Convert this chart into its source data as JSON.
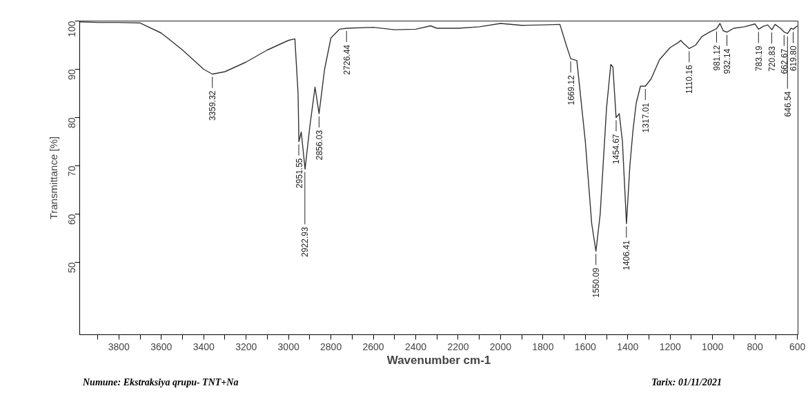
{
  "chart_data": {
    "type": "line",
    "xlabel": "Wavenumber cm-1",
    "ylabel": "Transmittance [%]",
    "xlim": [
      3985,
      597
    ],
    "ylim": [
      35,
      100
    ],
    "xticks": [
      {
        "value": 3900,
        "label": null
      },
      3800,
      {
        "value": 3700,
        "label": null
      },
      3600,
      {
        "value": 3500,
        "label": null
      },
      3400,
      {
        "value": 3300,
        "label": null
      },
      3200,
      {
        "value": 3100,
        "label": null
      },
      3000,
      {
        "value": 2900,
        "label": null
      },
      2800,
      {
        "value": 2700,
        "label": null
      },
      2600,
      {
        "value": 2500,
        "label": null
      },
      2400,
      {
        "value": 2300,
        "label": null
      },
      2200,
      {
        "value": 2100,
        "label": null
      },
      2000,
      {
        "value": 1900,
        "label": null
      },
      1800,
      {
        "value": 1700,
        "label": null
      },
      1600,
      {
        "value": 1500,
        "label": null
      },
      1400,
      {
        "value": 1300,
        "label": null
      },
      1200,
      {
        "value": 1100,
        "label": null
      },
      1000,
      {
        "value": 900,
        "label": null
      },
      800,
      {
        "value": 700,
        "label": null
      },
      600
    ],
    "yticks": [
      50,
      60,
      70,
      80,
      90,
      100
    ],
    "grid": false,
    "marker": "none",
    "line_style": "solid",
    "series": [
      {
        "color": "#333333",
        "x": [
          3985,
          3900,
          3800,
          3700,
          3600,
          3500,
          3400,
          3359,
          3300,
          3200,
          3100,
          3000,
          2970,
          2955,
          2951,
          2940,
          2922,
          2900,
          2875,
          2856,
          2830,
          2800,
          2760,
          2726,
          2600,
          2500,
          2400,
          2330,
          2300,
          2200,
          2100,
          2000,
          1900,
          1800,
          1720,
          1690,
          1669,
          1640,
          1600,
          1570,
          1550,
          1530,
          1500,
          1480,
          1470,
          1455,
          1440,
          1425,
          1406,
          1390,
          1375,
          1360,
          1340,
          1317,
          1290,
          1250,
          1200,
          1160,
          1150,
          1140,
          1110,
          1080,
          1050,
          1010,
          981,
          965,
          950,
          932,
          900,
          850,
          800,
          783,
          760,
          740,
          720,
          705,
          680,
          662,
          646,
          630,
          619,
          600
        ],
        "values": [
          99.8,
          99.7,
          99.7,
          99.6,
          97.5,
          94,
          90,
          89,
          89.5,
          91.5,
          94,
          96,
          96.3,
          85,
          75,
          77,
          69.3,
          78,
          86.3,
          80.8,
          90,
          96.5,
          98.3,
          98.5,
          98.7,
          98.2,
          98.3,
          99,
          98.5,
          98.5,
          98.8,
          99.5,
          99.1,
          99.2,
          99.3,
          95,
          92.2,
          91.8,
          75,
          58,
          52.3,
          60,
          82,
          91,
          90.5,
          80,
          80.8,
          75,
          58,
          70,
          77.5,
          83,
          86.5,
          86.5,
          88,
          92,
          94.5,
          95.6,
          96,
          95.5,
          94.3,
          95,
          96.8,
          97.8,
          98.4,
          99.5,
          98,
          97.7,
          98.5,
          98.8,
          99.4,
          98.3,
          98.9,
          99.2,
          98.2,
          99.3,
          98.5,
          97.7,
          97.4,
          98.5,
          98.3,
          99
        ]
      }
    ],
    "annotations": [
      {
        "text": "3359.32",
        "x": 3359.32,
        "y": 89
      },
      {
        "text": "2951.55",
        "x": 2951.55,
        "y": 75
      },
      {
        "text": "2922.93",
        "x": 2922.93,
        "y": 69.3
      },
      {
        "text": "2856.03",
        "x": 2856.03,
        "y": 80.8
      },
      {
        "text": "2726.44",
        "x": 2726.44,
        "y": 98.5
      },
      {
        "text": "1669.12",
        "x": 1669.12,
        "y": 92.2
      },
      {
        "text": "1550.09",
        "x": 1550.09,
        "y": 52.3
      },
      {
        "text": "1454.67",
        "x": 1454.67,
        "y": 80
      },
      {
        "text": "1406.41",
        "x": 1406.41,
        "y": 58
      },
      {
        "text": "1317.01",
        "x": 1317.01,
        "y": 86.5
      },
      {
        "text": "1110.16",
        "x": 1110.16,
        "y": 94.3
      },
      {
        "text": "981.12",
        "x": 981.12,
        "y": 98.4
      },
      {
        "text": "932.14",
        "x": 932.14,
        "y": 97.7
      },
      {
        "text": "783.19",
        "x": 783.19,
        "y": 98.3
      },
      {
        "text": "720.83",
        "x": 720.83,
        "y": 98.2
      },
      {
        "text": "662.67",
        "x": 662.67,
        "y": 97.7
      },
      {
        "text": "646.54",
        "x": 646.54,
        "y": 97.4
      },
      {
        "text": "619.80",
        "x": 619.8,
        "y": 98.3
      },
      "Numune: Ekstraksiya qrupu- TNT+Na",
      "Tarix: 01/11/2021"
    ]
  }
}
